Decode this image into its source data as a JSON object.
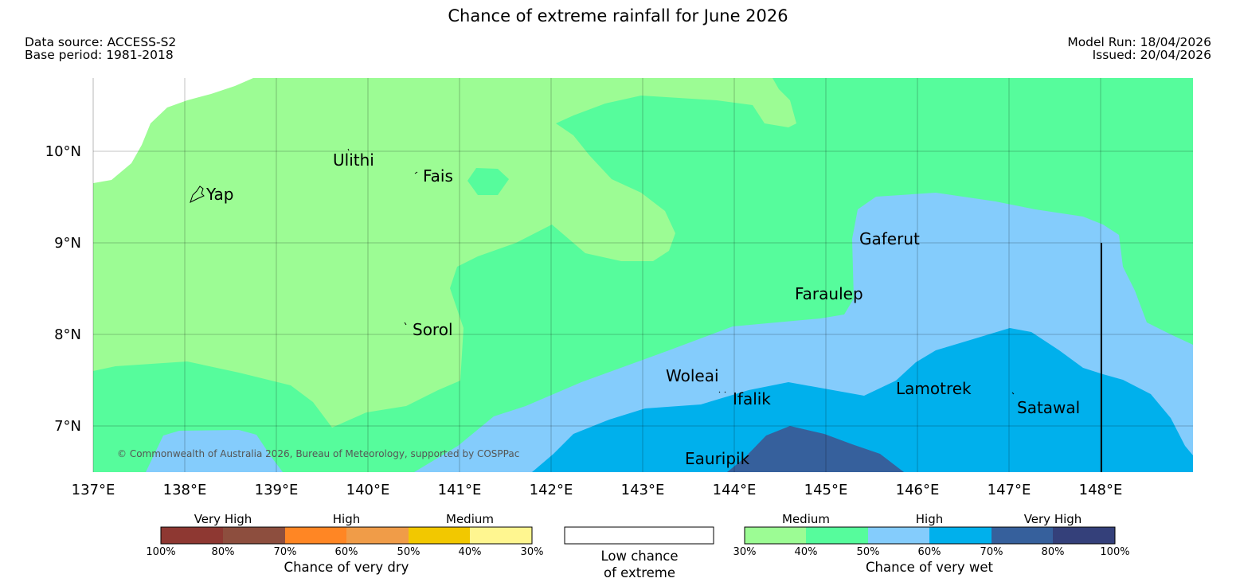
{
  "title": "Chance of extreme rainfall for June 2026",
  "meta": {
    "data_source": "Data source: ACCESS-S2",
    "base_period": "Base period: 1981-2018",
    "model_run": "Model Run: 18/04/2026",
    "issued": "Issued: 20/04/2026"
  },
  "map": {
    "copyright": "© Commonwealth of Australia 2026, Bureau of Meteorology, supported by COSPPac",
    "lon_ticks": [
      "137°E",
      "138°E",
      "139°E",
      "140°E",
      "141°E",
      "142°E",
      "143°E",
      "144°E",
      "145°E",
      "146°E",
      "147°E",
      "148°E"
    ],
    "lat_ticks": [
      "10°N",
      "9°N",
      "8°N",
      "7°N"
    ],
    "places": {
      "yap": "Yap",
      "ulithi": "Ulithi",
      "fais": "Fais",
      "sorol": "Sorol",
      "gaferut": "Gaferut",
      "faraulep": "Faraulep",
      "woleai": "Woleai",
      "ifalik": "Ifalik",
      "lamotrek": "Lamotrek",
      "satawal": "Satawal",
      "eauripik": "Eauripik"
    },
    "colors": {
      "land_outline": "#000000",
      "wet_medium_30_40": "#9cfc94",
      "wet_high_40_50": "#56fc9c",
      "wet_high_50_60": "#84ccfc",
      "wet_high_60_70": "#00b0ec",
      "wet_vhigh_70_80": "#36609c",
      "wet_vhigh_80_100": "#34407a"
    }
  },
  "legend": {
    "dry": {
      "groups": [
        "Very High",
        "High",
        "Medium"
      ],
      "colors": [
        "#8e3832",
        "#8d4e3e",
        "#ff8624",
        "#f09c48",
        "#f2c800",
        "#fff690"
      ],
      "pct_labels": [
        "100%",
        "80%",
        "70%",
        "60%",
        "50%",
        "40%",
        "30%"
      ],
      "caption": "Chance of very dry"
    },
    "low": {
      "caption_line1": "Low chance",
      "caption_line2": "of extreme"
    },
    "wet": {
      "groups": [
        "Medium",
        "High",
        "Very High"
      ],
      "colors": [
        "#9cfc94",
        "#56fc9c",
        "#84ccfc",
        "#00b0ec",
        "#36609c",
        "#34407a"
      ],
      "pct_labels": [
        "30%",
        "40%",
        "50%",
        "60%",
        "70%",
        "80%",
        "100%"
      ],
      "caption": "Chance of very wet"
    }
  }
}
